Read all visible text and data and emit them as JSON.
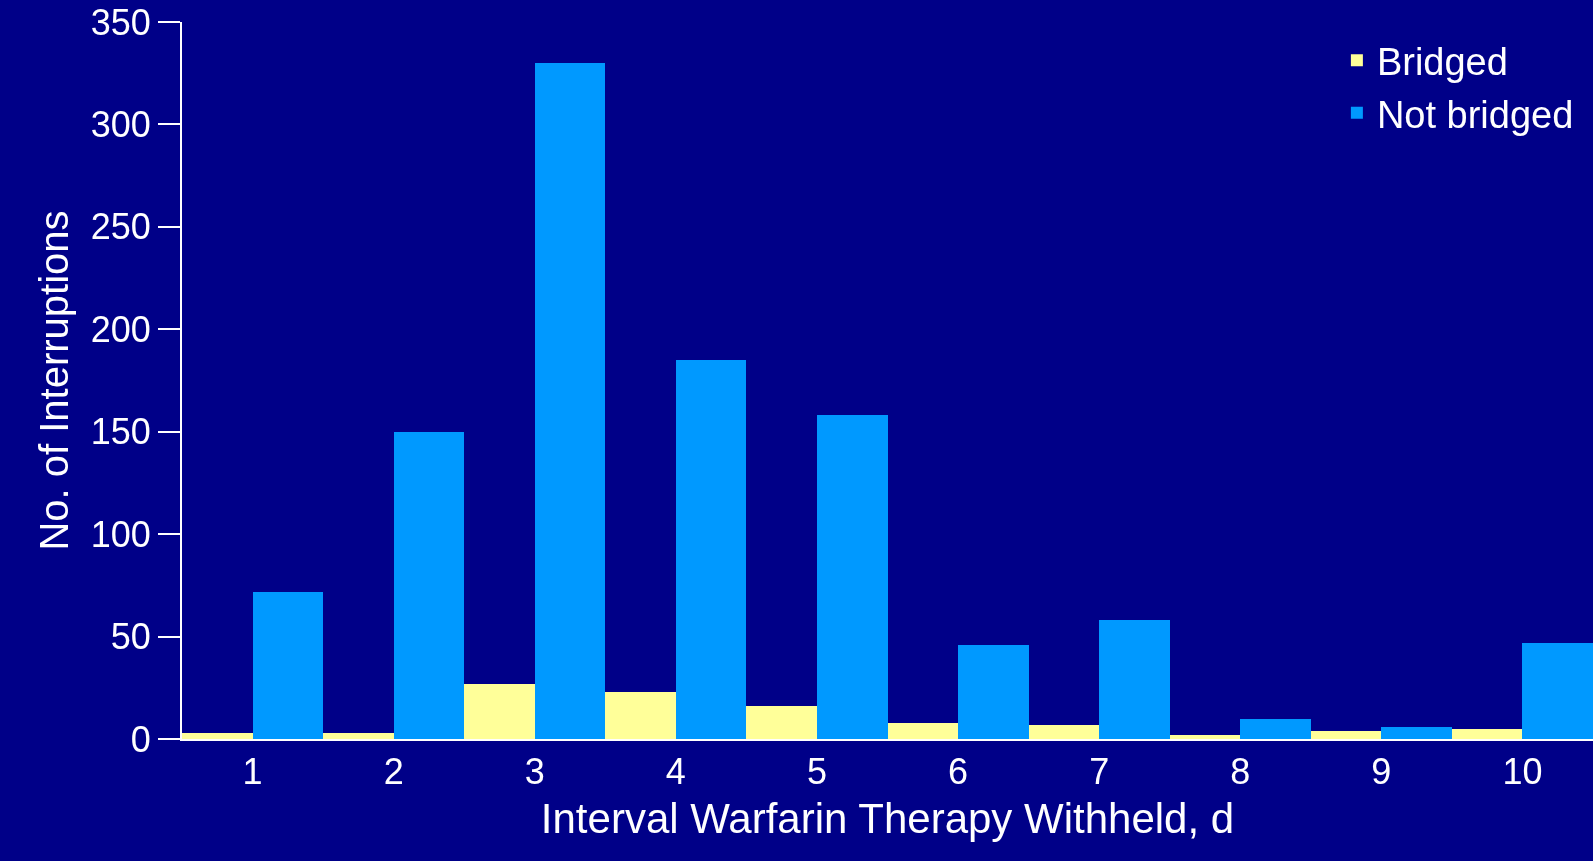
{
  "chart_data": {
    "type": "bar",
    "xlabel": "Interval Warfarin Therapy Withheld, d",
    "ylabel": "No. of Interruptions",
    "categories": [
      "1",
      "2",
      "3",
      "4",
      "5",
      "6",
      "7",
      "8",
      "9",
      "10"
    ],
    "series": [
      {
        "name": "Bridged",
        "color": "#ffff99",
        "values": [
          3,
          3,
          27,
          23,
          16,
          8,
          7,
          2,
          4,
          5
        ]
      },
      {
        "name": "Not bridged",
        "color": "#0099ff",
        "values": [
          72,
          150,
          330,
          185,
          158,
          46,
          58,
          10,
          6,
          47
        ]
      }
    ],
    "ylim": [
      0,
      350
    ],
    "yticks": [
      0,
      50,
      100,
      150,
      200,
      250,
      300,
      350
    ],
    "grid": false,
    "legend": "top right"
  }
}
